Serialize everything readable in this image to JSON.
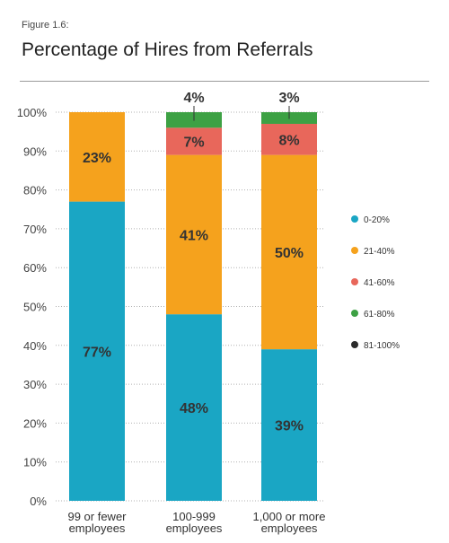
{
  "figure_label": "Figure 1.6:",
  "chart_data": {
    "type": "bar",
    "stacked": true,
    "title": "Percentage of Hires from Referrals",
    "categories": [
      [
        "99 or fewer",
        "employees"
      ],
      [
        "100-999",
        "employees"
      ],
      [
        "1,000 or more",
        "employees"
      ]
    ],
    "yticks": [
      "0%",
      "10%",
      "20%",
      "30%",
      "40%",
      "50%",
      "60%",
      "70%",
      "80%",
      "90%",
      "100%"
    ],
    "ylim": [
      0,
      100
    ],
    "grid": true,
    "legend_position": "right",
    "series": [
      {
        "name": "0-20%",
        "color": "#1aa6c4",
        "values": [
          77,
          48,
          39
        ],
        "labels": [
          "77%",
          "48%",
          "39%"
        ]
      },
      {
        "name": "21-40%",
        "color": "#f5a21d",
        "values": [
          23,
          41,
          50
        ],
        "labels": [
          "23%",
          "41%",
          "50%"
        ]
      },
      {
        "name": "41-60%",
        "color": "#e8675b",
        "values": [
          0,
          7,
          8
        ],
        "labels": [
          "",
          "7%",
          "8%"
        ]
      },
      {
        "name": "61-80%",
        "color": "#3da144",
        "values": [
          0,
          4,
          3
        ],
        "labels": [
          "",
          "4%",
          "3%"
        ]
      },
      {
        "name": "81-100%",
        "color": "#2b2b2b",
        "values": [
          0,
          0,
          0
        ],
        "labels": [
          "",
          "",
          ""
        ]
      }
    ]
  }
}
